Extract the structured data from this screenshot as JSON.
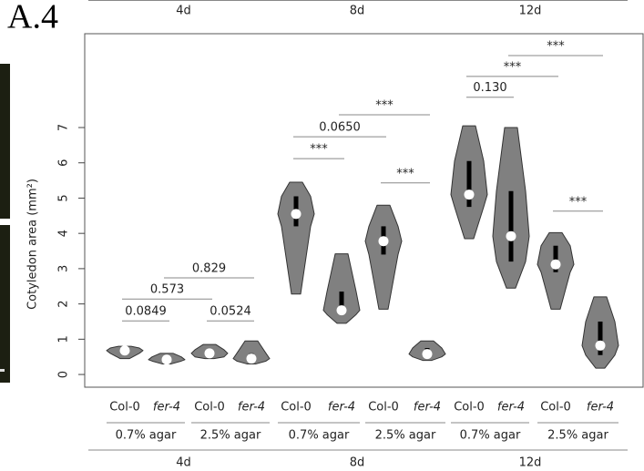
{
  "panel_label": "A.4",
  "chart_data": {
    "type": "violin",
    "y_label": "Cotyledon area (mm²)",
    "ylim": [
      -0.36,
      9.66
    ],
    "yticks": [
      0,
      1,
      2,
      3,
      4,
      5,
      6,
      7
    ],
    "categories": [
      "Col-0",
      "fer-4",
      "Col-0",
      "fer-4",
      "Col-0",
      "fer-4",
      "Col-0",
      "fer-4",
      "Col-0",
      "fer-4",
      "Col-0",
      "fer-4"
    ],
    "media": [
      "0.7% agar",
      "2.5% agar",
      "0.7% agar",
      "2.5% agar",
      "0.7% agar",
      "2.5% agar"
    ],
    "days": [
      "4d",
      "8d",
      "12d"
    ],
    "color": "#808080",
    "violins": [
      {
        "min": 0.45,
        "q1": 0.6,
        "median": 0.68,
        "q3": 0.75,
        "max": 0.8
      },
      {
        "min": 0.3,
        "q1": 0.38,
        "median": 0.42,
        "q3": 0.5,
        "max": 0.6
      },
      {
        "min": 0.45,
        "q1": 0.5,
        "median": 0.6,
        "q3": 0.7,
        "max": 0.85
      },
      {
        "min": 0.3,
        "q1": 0.38,
        "median": 0.45,
        "q3": 0.6,
        "max": 0.95
      },
      {
        "min": 2.28,
        "q1": 4.2,
        "median": 4.55,
        "q3": 5.05,
        "max": 5.45
      },
      {
        "min": 1.45,
        "q1": 1.7,
        "median": 1.82,
        "q3": 2.35,
        "max": 3.42
      },
      {
        "min": 1.85,
        "q1": 3.4,
        "median": 3.78,
        "q3": 4.2,
        "max": 4.8
      },
      {
        "min": 0.4,
        "q1": 0.5,
        "median": 0.58,
        "q3": 0.75,
        "max": 0.95
      },
      {
        "min": 3.85,
        "q1": 4.75,
        "median": 5.1,
        "q3": 6.05,
        "max": 7.05
      },
      {
        "min": 2.45,
        "q1": 3.2,
        "median": 3.92,
        "q3": 5.2,
        "max": 7.0
      },
      {
        "min": 1.85,
        "q1": 2.9,
        "median": 3.12,
        "q3": 3.65,
        "max": 4.02
      },
      {
        "min": 0.18,
        "q1": 0.55,
        "median": 0.82,
        "q3": 1.5,
        "max": 2.2
      }
    ],
    "comparisons": [
      {
        "from": 0,
        "to": 1,
        "y": 1.52,
        "label": "0.0849",
        "color": "#222222"
      },
      {
        "from": 0,
        "to": 2,
        "y": 2.14,
        "label": "0.573",
        "color": "#222222"
      },
      {
        "from": 1,
        "to": 3,
        "y": 2.74,
        "label": "0.829",
        "color": "#222222"
      },
      {
        "from": 2,
        "to": 3,
        "y": 1.52,
        "label": "0.0524",
        "color": "#222222"
      },
      {
        "from": 4,
        "to": 5,
        "y": 6.12,
        "label": "***",
        "color": "#e0352b"
      },
      {
        "from": 4,
        "to": 6,
        "y": 6.74,
        "label": "0.0650",
        "color": "#222222"
      },
      {
        "from": 5,
        "to": 7,
        "y": 7.36,
        "label": "***",
        "color": "#e0352b"
      },
      {
        "from": 6,
        "to": 7,
        "y": 5.43,
        "label": "***",
        "color": "#e0352b"
      },
      {
        "from": 8,
        "to": 9,
        "y": 7.86,
        "label": "0.130",
        "color": "#222222"
      },
      {
        "from": 8,
        "to": 10,
        "y": 8.45,
        "label": "***",
        "color": "#e0352b"
      },
      {
        "from": 9,
        "to": 11,
        "y": 9.04,
        "label": "***",
        "color": "#e0352b"
      },
      {
        "from": 10,
        "to": 11,
        "y": 4.63,
        "label": "***",
        "color": "#e0352b"
      }
    ]
  }
}
